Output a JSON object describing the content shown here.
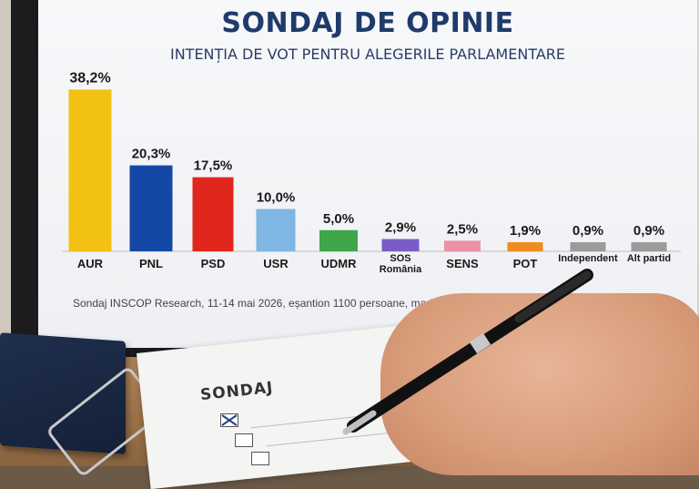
{
  "chart_data": {
    "type": "bar",
    "title": "SONDAJ DE OPINIE",
    "subtitle": "INTENȚIA DE VOT PENTRU ALEGERILE PARLAMENTARE",
    "categories": [
      "AUR",
      "PNL",
      "PSD",
      "USR",
      "UDMR",
      "SOS România",
      "SENS",
      "POT",
      "Independent",
      "Alt partid"
    ],
    "category_lines": [
      [
        "AUR"
      ],
      [
        "PNL"
      ],
      [
        "PSD"
      ],
      [
        "USR"
      ],
      [
        "UDMR"
      ],
      [
        "SOS",
        "România"
      ],
      [
        "SENS"
      ],
      [
        "POT"
      ],
      [
        "Independent"
      ],
      [
        "Alt partid"
      ]
    ],
    "values": [
      38.2,
      20.3,
      17.5,
      10.0,
      5.0,
      2.9,
      2.5,
      1.9,
      0.9,
      0.9
    ],
    "value_labels": [
      "38,2%",
      "20,3%",
      "17,5%",
      "10,0%",
      "5,0%",
      "2,9%",
      "2,5%",
      "1,9%",
      "0,9%",
      "0,9%"
    ],
    "colors": [
      "#f2c114",
      "#1548a6",
      "#e1261c",
      "#7fb6e3",
      "#3fa64a",
      "#7b5cc4",
      "#ee8fa8",
      "#f08c1d",
      "#9b9b9b",
      "#9b9b9b"
    ],
    "ylim": [
      0,
      40
    ],
    "grid": false,
    "legend": "none"
  },
  "footnote": "Sondaj INSCOP Research, 11-14 mai 2026, eșantion 1100 persoane, marjă de eroare ±3%",
  "ballot": {
    "heading": "SONDAJ"
  }
}
